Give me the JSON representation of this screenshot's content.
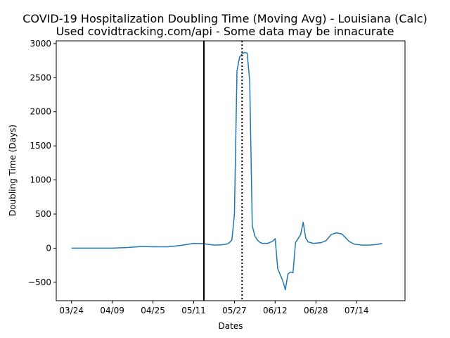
{
  "chart_data": {
    "type": "line",
    "title": "COVID-19 Hospitalization Doubling Time (Moving Avg) - Louisiana (Calc)",
    "subtitle": "Used covidtracking.com/api - Some data may be innacurate",
    "xlabel": "Dates",
    "ylabel": "Doubling Time (Days)",
    "x_tick_labels": [
      "03/24",
      "04/09",
      "04/25",
      "05/11",
      "05/27",
      "06/12",
      "06/28",
      "07/14"
    ],
    "y_ticks": [
      -500,
      0,
      500,
      1000,
      1500,
      2000,
      2500,
      3000
    ],
    "ylim": [
      -770,
      3040
    ],
    "xlim": [
      "2020-03-18",
      "2020-08-02"
    ],
    "grid": false,
    "legend": "none",
    "series_color": "#1f77b4",
    "vertical_lines": [
      {
        "x": "2020-05-15",
        "style": "solid",
        "color": "#000000"
      },
      {
        "x": "2020-05-30",
        "style": "dotted",
        "color": "#000000"
      }
    ],
    "series": [
      {
        "x": [
          "2020-03-24",
          "2020-04-01",
          "2020-04-09",
          "2020-04-15",
          "2020-04-21",
          "2020-04-25",
          "2020-05-01",
          "2020-05-06",
          "2020-05-11",
          "2020-05-15",
          "2020-05-19",
          "2020-05-22",
          "2020-05-24",
          "2020-05-25",
          "2020-05-26",
          "2020-05-27",
          "2020-05-28",
          "2020-05-29",
          "2020-05-30",
          "2020-05-31",
          "2020-06-01",
          "2020-06-02",
          "2020-06-03",
          "2020-06-04",
          "2020-06-05",
          "2020-06-06",
          "2020-06-07",
          "2020-06-09",
          "2020-06-11",
          "2020-06-12",
          "2020-06-13",
          "2020-06-15",
          "2020-06-16",
          "2020-06-17",
          "2020-06-18",
          "2020-06-19",
          "2020-06-20",
          "2020-06-22",
          "2020-06-23",
          "2020-06-24",
          "2020-06-25",
          "2020-06-27",
          "2020-06-30",
          "2020-07-02",
          "2020-07-04",
          "2020-07-06",
          "2020-07-08",
          "2020-07-09",
          "2020-07-11",
          "2020-07-13",
          "2020-07-16",
          "2020-07-19",
          "2020-07-22",
          "2020-07-24"
        ],
        "values": [
          0,
          0,
          0,
          10,
          25,
          20,
          20,
          40,
          70,
          65,
          45,
          50,
          60,
          80,
          120,
          500,
          2600,
          2800,
          2850,
          2870,
          2860,
          2450,
          330,
          180,
          120,
          85,
          70,
          70,
          100,
          140,
          -300,
          -480,
          -610,
          -380,
          -350,
          -360,
          80,
          200,
          380,
          150,
          90,
          70,
          80,
          110,
          200,
          225,
          210,
          180,
          100,
          60,
          45,
          45,
          55,
          70
        ]
      }
    ]
  }
}
